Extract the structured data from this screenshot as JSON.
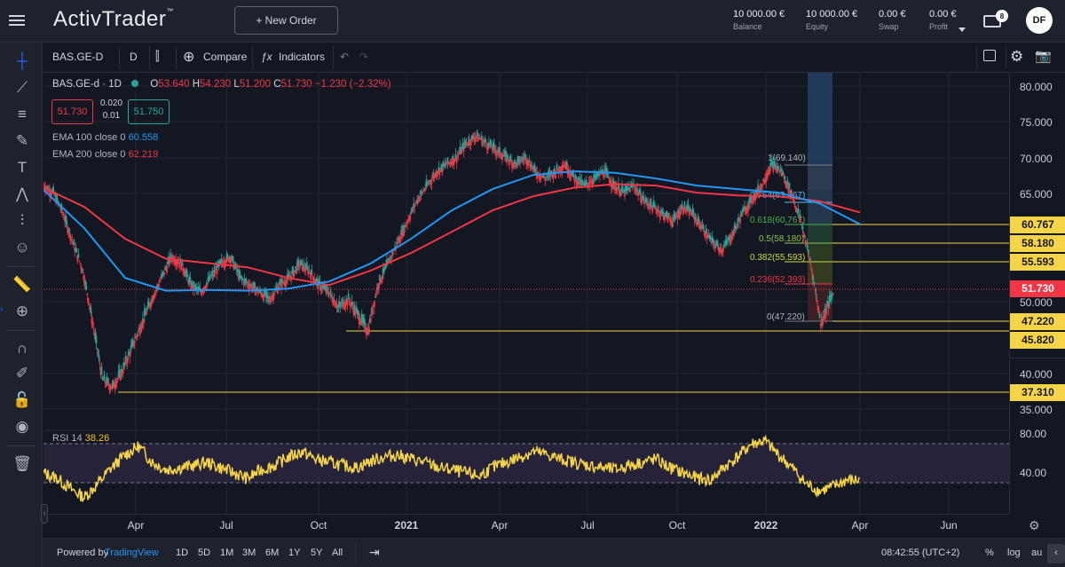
{
  "app": {
    "logo": "ActivTrader",
    "logo_tm": "™"
  },
  "header": {
    "new_order_label": "+ New Order",
    "stats": [
      {
        "value": "10 000.00 €",
        "label": "Balance"
      },
      {
        "value": "10 000.00 €",
        "label": "Equity"
      },
      {
        "value": "0.00 €",
        "label": "Swap"
      },
      {
        "value": "0.00 €",
        "label": "Profit"
      }
    ],
    "mail_count": "8",
    "avatar_initials": "DF"
  },
  "toolbar": {
    "symbol": "BAS.GE-D",
    "interval": "D",
    "compare_label": "Compare",
    "indicators_label": "Indicators"
  },
  "legend": {
    "title": "BAS.GE-d · 1D",
    "o_label": "O",
    "o": "53.640",
    "h_label": "H",
    "h": "54.230",
    "l_label": "L",
    "l": "51.200",
    "c_label": "C",
    "c": "51.730",
    "change": "−1.230 (−2.32%)",
    "sell": "51.730",
    "spread_top": "0.020",
    "spread_bottom": "0.01",
    "buy": "51.750"
  },
  "indicators": [
    {
      "label": "EMA 100 close 0",
      "value": "60.558",
      "color": "#2196f3"
    },
    {
      "label": "EMA 200 close 0",
      "value": "62.219",
      "color": "#f23645"
    }
  ],
  "rsi": {
    "label": "RSI 14",
    "value": "38.26"
  },
  "price_axis": {
    "ticks": [
      "80.000",
      "75.000",
      "70.000",
      "65.000",
      "50.000",
      "40.000",
      "35.000"
    ],
    "rsi_ticks": [
      "80.00",
      "40.00"
    ]
  },
  "levels": [
    {
      "label": "60.767",
      "kind": "yellow"
    },
    {
      "label": "58.180",
      "kind": "yellow"
    },
    {
      "label": "55.593",
      "kind": "yellow"
    },
    {
      "label": "51.730",
      "kind": "red"
    },
    {
      "label": "47.220",
      "kind": "yellow"
    },
    {
      "label": "45.820",
      "kind": "yellow"
    },
    {
      "label": "37.310",
      "kind": "yellow"
    }
  ],
  "fib": [
    {
      "label": "1(69.140)",
      "color": "#b2b5be"
    },
    {
      "label": "0.764(63.967)",
      "color": "#4fc3f7"
    },
    {
      "label": "0.618(60.767)",
      "color": "#4caf50"
    },
    {
      "label": "0.5(58.180)",
      "color": "#8bc34a"
    },
    {
      "label": "0.382(55.593)",
      "color": "#cddc39"
    },
    {
      "label": "0.236(52.393)",
      "color": "#f23645"
    },
    {
      "label": "0(47.220)",
      "color": "#b2b5be"
    }
  ],
  "time_axis": [
    "Apr",
    "Jul",
    "Oct",
    "2021",
    "Apr",
    "Jul",
    "Oct",
    "2022",
    "Apr",
    "Jun"
  ],
  "bottom": {
    "powered": "Powered by",
    "brand": "TradingView",
    "ranges": [
      "1D",
      "5D",
      "1M",
      "3M",
      "6M",
      "1Y",
      "5Y",
      "All"
    ],
    "clock": "08:42:55 (UTC+2)",
    "percent": "%",
    "log": "log",
    "auto": "au"
  },
  "chart_data": {
    "type": "candlestick",
    "title": "BAS.GE-d · 1D",
    "y_axis": {
      "min": 35,
      "max": 80
    },
    "series": [
      {
        "name": "EMA 100",
        "color": "#2196f3",
        "values": [
          65.4,
          60,
          53,
          51.2,
          51.3,
          51.2,
          51.5,
          52.5,
          55,
          58.5,
          62.5,
          65.5,
          67.5,
          68,
          67.8,
          67,
          66,
          65.5,
          65,
          63.5,
          60.558
        ]
      },
      {
        "name": "EMA 200",
        "color": "#f23645",
        "values": [
          65.7,
          63,
          58.5,
          55.7,
          55.1,
          54.5,
          53,
          52,
          54,
          56.5,
          59.5,
          62.5,
          64.5,
          65.7,
          66.2,
          66,
          65,
          64.6,
          64.5,
          63.8,
          62.219
        ]
      }
    ],
    "rsi": {
      "name": "RSI 14",
      "last": 38.26,
      "range": [
        20,
        80
      ],
      "overbought": 70,
      "oversold": 30
    }
  }
}
